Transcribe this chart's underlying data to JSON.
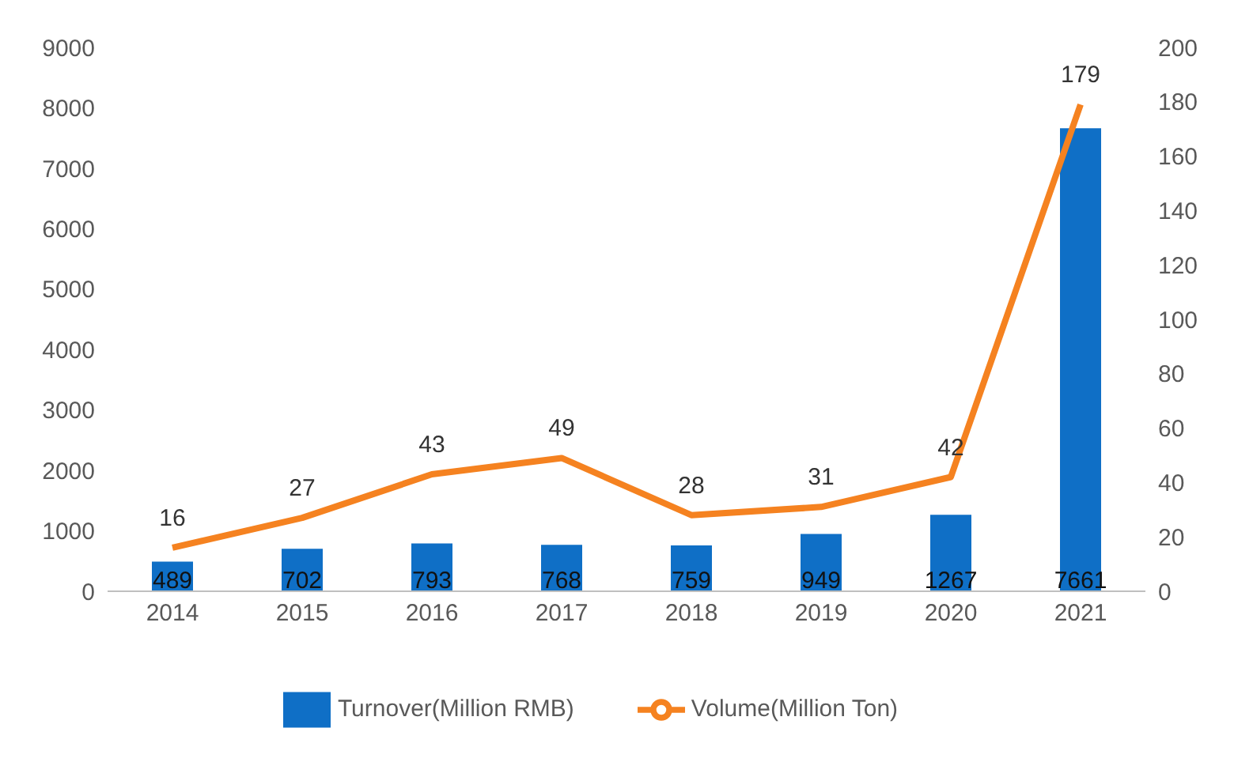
{
  "chart_data": {
    "type": "bar",
    "categories": [
      "2014",
      "2015",
      "2016",
      "2017",
      "2018",
      "2019",
      "2020",
      "2021"
    ],
    "series": [
      {
        "name": "Turnover(Million RMB)",
        "color": "#0f6fc6",
        "values": [
          489,
          702,
          793,
          768,
          759,
          949,
          1267,
          7661
        ]
      },
      {
        "type": "line",
        "axis": "y2",
        "name": "Volume(Million Ton)",
        "color": "#f58220",
        "values": [
          16,
          27,
          43,
          49,
          28,
          31,
          42,
          179
        ]
      }
    ],
    "ylim": [
      0,
      9000
    ],
    "yticks": [
      0,
      1000,
      2000,
      3000,
      4000,
      5000,
      6000,
      7000,
      8000,
      9000
    ],
    "y2lim": [
      0,
      200
    ],
    "y2ticks": [
      0,
      20,
      40,
      60,
      80,
      100,
      120,
      140,
      160,
      180,
      200
    ],
    "data_labels": true,
    "legend": "bottom",
    "marker": "none"
  }
}
